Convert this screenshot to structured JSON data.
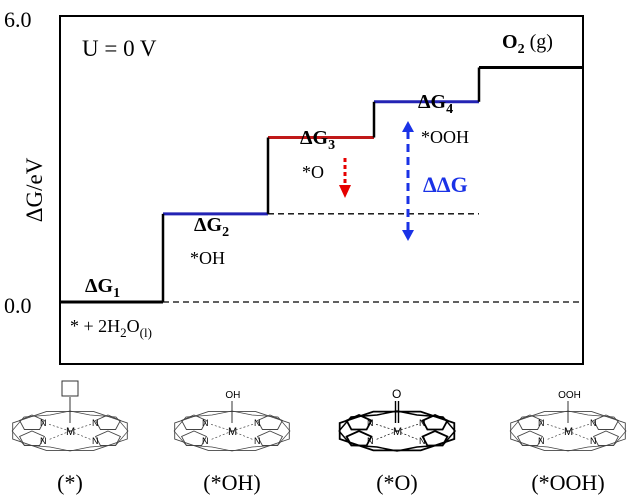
{
  "chart_data": {
    "type": "line",
    "ylabel": "ΔG/eV",
    "ytick_labels": [
      "6.0",
      "0.0"
    ],
    "ylim": [
      -1.2,
      6.0
    ],
    "condition": "U = 0 V",
    "steps": [
      {
        "key": "g1",
        "label": "ΔG",
        "sub": "1",
        "species": "* + 2H₂O(l)",
        "species_main": "* + 2H",
        "species_sub1": "2",
        "species_mid": "O",
        "species_sub2": "(l)",
        "value": 0.0,
        "color": "#000000"
      },
      {
        "key": "g2",
        "label": "ΔG",
        "sub": "2",
        "species": "*OH",
        "value": 1.85,
        "color": "#2323b4"
      },
      {
        "key": "g3",
        "label": "ΔG",
        "sub": "3",
        "species": "*O",
        "value": 3.45,
        "color": "#c01818"
      },
      {
        "key": "g4",
        "label": "ΔG",
        "sub": "4",
        "species": "*OOH",
        "value": 4.2,
        "color": "#2323b4"
      },
      {
        "key": "o2",
        "label": "O",
        "sub": "2",
        "label_suffix": " (g)",
        "species": "O₂ (g)",
        "value": 4.92,
        "color": "#000000"
      }
    ],
    "annotation": {
      "label": "ΔΔG",
      "color": "#1a32e6"
    },
    "reference_lines": [
      0.0,
      1.85
    ],
    "arrow_colors": {
      "o_shift": "#e60000",
      "ddg": "#1a32e6"
    }
  },
  "structures": [
    {
      "key": "empty",
      "ligand": "☐",
      "caption": "(*)"
    },
    {
      "key": "oh",
      "ligand": "OH",
      "caption": "(*OH)"
    },
    {
      "key": "o",
      "ligand": "O",
      "caption": "(*O)"
    },
    {
      "key": "ooh",
      "ligand": "OOH",
      "caption": "(*OOH)"
    }
  ],
  "porphyrin_labels": {
    "metal": "M",
    "nitrogen": "N"
  }
}
